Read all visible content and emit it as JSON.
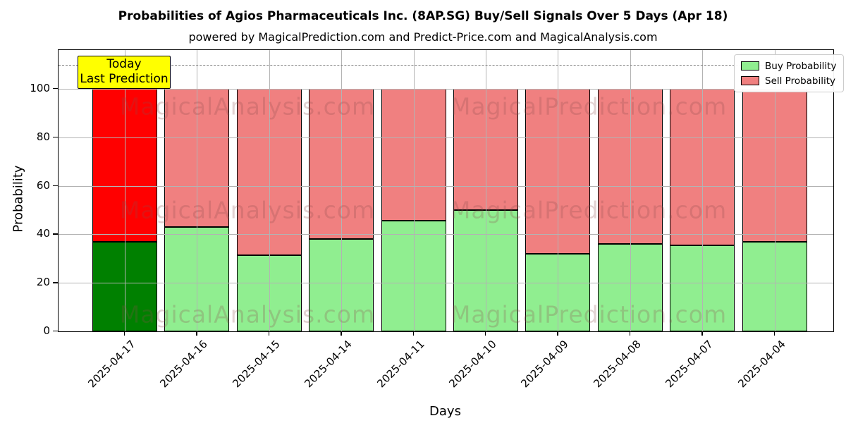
{
  "title": "Probabilities of Agios Pharmaceuticals Inc. (8AP.SG) Buy/Sell Signals Over 5 Days (Apr 18)",
  "subtitle": "powered by MagicalPrediction.com and Predict-Price.com and MagicalAnalysis.com",
  "annotation": {
    "line1": "Today",
    "line2": "Last Prediction"
  },
  "legend": [
    {
      "label": "Buy Probability",
      "color": "#90ee90"
    },
    {
      "label": "Sell Probability",
      "color": "#f08080"
    }
  ],
  "watermarks": {
    "left": "MagicalAnalysis.com",
    "right": "MagicalPrediction.com"
  },
  "chart_data": {
    "type": "bar",
    "stacked": true,
    "title": "Probabilities of Agios Pharmaceuticals Inc. (8AP.SG) Buy/Sell Signals Over 5 Days (Apr 18)",
    "xlabel": "Days",
    "ylabel": "Probability",
    "categories": [
      "2025-04-17",
      "2025-04-16",
      "2025-04-15",
      "2025-04-14",
      "2025-04-11",
      "2025-04-10",
      "2025-04-09",
      "2025-04-08",
      "2025-04-07",
      "2025-04-04"
    ],
    "series": [
      {
        "name": "Buy Probability",
        "values": [
          37,
          43,
          31.5,
          38,
          45.5,
          50,
          32,
          36,
          35.5,
          37
        ],
        "color_default": "#90ee90",
        "color_today": "#008000"
      },
      {
        "name": "Sell Probability",
        "values": [
          63,
          57,
          68.5,
          62,
          54.5,
          50,
          68,
          64,
          64.5,
          63
        ],
        "color_default": "#f08080",
        "color_today": "#ff0000"
      }
    ],
    "highlighted_category": "2025-04-17",
    "yticks": [
      0,
      20,
      40,
      60,
      80,
      100
    ],
    "ylim": [
      0,
      116
    ],
    "dashed_line_y": 110,
    "grid": true,
    "legend_position": "upper right"
  }
}
